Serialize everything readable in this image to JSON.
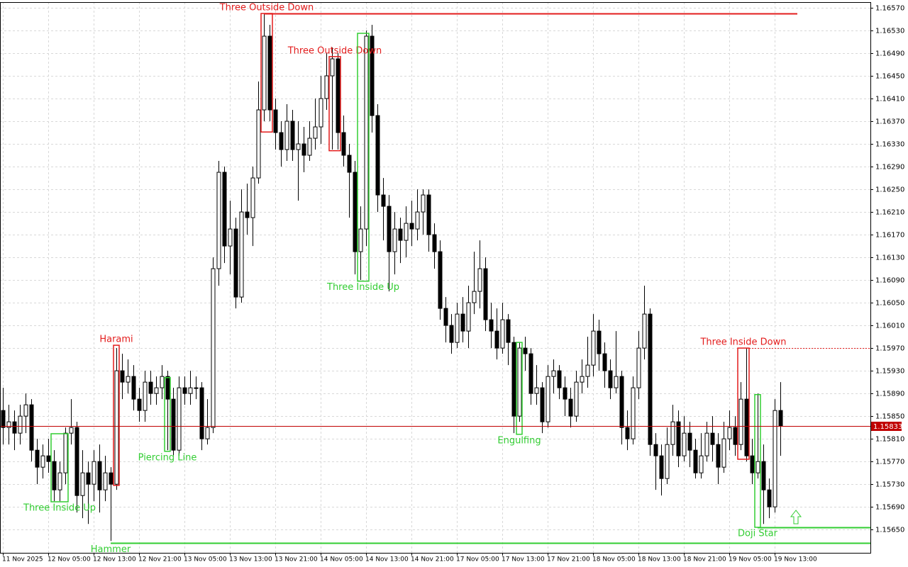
{
  "chart_data": {
    "type": "candlestick",
    "ylim": [
      1.15609,
      1.1658
    ],
    "yticks": [
      {
        "value": 1.1657,
        "label": "1.16570"
      },
      {
        "value": 1.1653,
        "label": "1.16530"
      },
      {
        "value": 1.1649,
        "label": "1.16490"
      },
      {
        "value": 1.1645,
        "label": "1.16450"
      },
      {
        "value": 1.1641,
        "label": "1.16410"
      },
      {
        "value": 1.1637,
        "label": "1.16370"
      },
      {
        "value": 1.1633,
        "label": "1.16330"
      },
      {
        "value": 1.1629,
        "label": "1.16290"
      },
      {
        "value": 1.1625,
        "label": "1.16250"
      },
      {
        "value": 1.1621,
        "label": "1.16210"
      },
      {
        "value": 1.1617,
        "label": "1.16170"
      },
      {
        "value": 1.1613,
        "label": "1.16130"
      },
      {
        "value": 1.1609,
        "label": "1.16090"
      },
      {
        "value": 1.1605,
        "label": "1.16050"
      },
      {
        "value": 1.1601,
        "label": "1.16010"
      },
      {
        "value": 1.1597,
        "label": "1.15970"
      },
      {
        "value": 1.1593,
        "label": "1.15930"
      },
      {
        "value": 1.1589,
        "label": "1.15890"
      },
      {
        "value": 1.1585,
        "label": "1.15850"
      },
      {
        "value": 1.1581,
        "label": "1.15810"
      },
      {
        "value": 1.1577,
        "label": "1.15770"
      },
      {
        "value": 1.1573,
        "label": "1.15730"
      },
      {
        "value": 1.1569,
        "label": "1.15690"
      },
      {
        "value": 1.1565,
        "label": "1.15650"
      }
    ],
    "grid": true,
    "categories": [
      "11 Nov 2025",
      null,
      null,
      null,
      null,
      null,
      null,
      null,
      "12 Nov 05:00",
      null,
      null,
      null,
      null,
      null,
      null,
      null,
      "12 Nov 13:00",
      null,
      null,
      null,
      null,
      null,
      null,
      null,
      "12 Nov 21:00",
      null,
      null,
      null,
      null,
      null,
      null,
      null,
      "13 Nov 05:00",
      null,
      null,
      null,
      null,
      null,
      null,
      null,
      "13 Nov 13:00",
      null,
      null,
      null,
      null,
      null,
      null,
      null,
      "13 Nov 21:00",
      null,
      null,
      null,
      null,
      null,
      null,
      null,
      "14 Nov 05:00",
      null,
      null,
      null,
      null,
      null,
      null,
      null,
      "14 Nov 13:00",
      null,
      null,
      null,
      null,
      null,
      null,
      null,
      "14 Nov 21:00",
      null,
      null,
      null,
      null,
      null,
      null,
      null,
      "17 Nov 05:00",
      null,
      null,
      null,
      null,
      null,
      null,
      null,
      "17 Nov 13:00",
      null,
      null,
      null,
      null,
      null,
      null,
      null,
      "17 Nov 21:00",
      null,
      null,
      null,
      null,
      null,
      null,
      null,
      "18 Nov 05:00",
      null,
      null,
      null,
      null,
      null,
      null,
      null,
      "18 Nov 13:00",
      null,
      null,
      null,
      null,
      null,
      null,
      null,
      "18 Nov 21:00",
      null,
      null,
      null,
      null,
      null,
      null,
      null,
      "19 Nov 05:00",
      null,
      null,
      null,
      null,
      null,
      null,
      null,
      "19 Nov 13:00",
      null
    ],
    "open": [
      1.1586,
      1.1583,
      1.1584,
      1.1582,
      1.1585,
      1.1587,
      1.1579,
      1.1576,
      1.1578,
      1.1577,
      1.1572,
      1.1575,
      1.1582,
      1.1583,
      1.1571,
      1.1575,
      1.1573,
      1.1577,
      1.1572,
      1.1575,
      1.1573,
      1.1593,
      1.1591,
      1.1592,
      1.1588,
      1.1586,
      1.1591,
      1.1589,
      1.159,
      1.1592,
      1.1588,
      1.1579,
      1.159,
      1.1589,
      1.159,
      1.159,
      1.1581,
      1.1583,
      1.1611,
      1.1628,
      1.1615,
      1.1618,
      1.1606,
      1.1621,
      1.162,
      1.1627,
      1.1639,
      1.1652,
      1.1639,
      1.1635,
      1.1632,
      1.1637,
      1.1632,
      1.1633,
      1.1631,
      1.1634,
      1.1636,
      1.1641,
      1.1645,
      1.1648,
      1.1635,
      1.1631,
      1.1628,
      1.1614,
      1.1618,
      1.1652,
      1.1638,
      1.1624,
      1.1622,
      1.1614,
      1.1618,
      1.1616,
      1.1619,
      1.1618,
      1.1621,
      1.1624,
      1.1617,
      1.1614,
      1.1604,
      1.1601,
      1.1598,
      1.1603,
      1.16,
      1.1605,
      1.1607,
      1.1611,
      1.1602,
      1.16,
      1.1597,
      1.1602,
      1.1598,
      1.1585,
      1.1597,
      1.1596,
      1.1589,
      1.159,
      1.1584,
      1.1592,
      1.1593,
      1.159,
      1.1588,
      1.1585,
      1.1591,
      1.1592,
      1.1594,
      1.16,
      1.1596,
      1.1593,
      1.159,
      1.1592,
      1.1583,
      1.1581,
      1.159,
      1.1597,
      1.1603,
      1.158,
      1.1578,
      1.1574,
      1.158,
      1.1584,
      1.1578,
      1.1582,
      1.1579,
      1.1575,
      1.1578,
      1.1582,
      1.158,
      1.1576,
      1.1581,
      1.1583,
      1.158,
      1.1588,
      1.1578,
      1.1575,
      1.1577,
      1.1572,
      1.1569,
      1.1586
    ],
    "high": [
      1.159,
      1.1587,
      1.1586,
      1.1587,
      1.1589,
      1.1588,
      1.1581,
      1.158,
      1.1581,
      1.1579,
      1.1577,
      1.1583,
      1.1588,
      1.1584,
      1.1579,
      1.1577,
      1.1579,
      1.158,
      1.1578,
      1.1576,
      1.1597,
      1.1596,
      1.1595,
      1.1594,
      1.159,
      1.1593,
      1.1593,
      1.1592,
      1.1594,
      1.1593,
      1.159,
      1.1592,
      1.1592,
      1.1593,
      1.1592,
      1.1591,
      1.1588,
      1.1613,
      1.163,
      1.1629,
      1.1623,
      1.162,
      1.1625,
      1.1626,
      1.1629,
      1.1644,
      1.1656,
      1.1654,
      1.1641,
      1.1637,
      1.164,
      1.1639,
      1.1637,
      1.1636,
      1.1637,
      1.1641,
      1.1645,
      1.1649,
      1.165,
      1.1649,
      1.1638,
      1.1633,
      1.163,
      1.1622,
      1.1653,
      1.1654,
      1.164,
      1.1627,
      1.1624,
      1.1621,
      1.162,
      1.1622,
      1.1623,
      1.1625,
      1.1625,
      1.1625,
      1.1619,
      1.1616,
      1.1606,
      1.1603,
      1.1605,
      1.1606,
      1.1608,
      1.1614,
      1.1616,
      1.1613,
      1.1605,
      1.1604,
      1.1605,
      1.1603,
      1.1599,
      1.1598,
      1.1599,
      1.1597,
      1.1594,
      1.1591,
      1.1594,
      1.1595,
      1.1594,
      1.1592,
      1.159,
      1.1593,
      1.1595,
      1.1599,
      1.1603,
      1.1602,
      1.1598,
      1.1595,
      1.16,
      1.1593,
      1.1586,
      1.1592,
      1.16,
      1.1608,
      1.1604,
      1.1582,
      1.158,
      1.1583,
      1.1587,
      1.1586,
      1.1585,
      1.1584,
      1.1581,
      1.1582,
      1.1584,
      1.1585,
      1.1582,
      1.1584,
      1.1586,
      1.1585,
      1.1591,
      1.1597,
      1.1581,
      1.1589,
      1.158,
      1.1574,
      1.1588,
      1.1591
    ],
    "low": [
      1.158,
      1.158,
      1.1579,
      1.158,
      1.1582,
      1.1577,
      1.1573,
      1.1574,
      1.1575,
      1.157,
      1.157,
      1.1573,
      1.158,
      1.1568,
      1.1567,
      1.1566,
      1.157,
      1.1568,
      1.157,
      1.1563,
      1.1572,
      1.1588,
      1.1589,
      1.1586,
      1.1584,
      1.1584,
      1.1587,
      1.1587,
      1.1588,
      1.1579,
      1.1578,
      1.1578,
      1.1587,
      1.1587,
      1.1588,
      1.1579,
      1.158,
      1.1582,
      1.1608,
      1.1612,
      1.161,
      1.1604,
      1.1605,
      1.1617,
      1.1615,
      1.1626,
      1.1637,
      1.1637,
      1.1632,
      1.1629,
      1.163,
      1.163,
      1.1623,
      1.1628,
      1.163,
      1.1632,
      1.1633,
      1.1639,
      1.1632,
      1.1632,
      1.1629,
      1.162,
      1.161,
      1.1609,
      1.1615,
      1.1635,
      1.1621,
      1.1616,
      1.1607,
      1.161,
      1.1612,
      1.1613,
      1.1615,
      1.1616,
      1.1617,
      1.1614,
      1.1611,
      1.1602,
      1.1598,
      1.1596,
      1.1597,
      1.1598,
      1.1597,
      1.1603,
      1.1604,
      1.16,
      1.1597,
      1.1595,
      1.1596,
      1.1594,
      1.1582,
      1.1584,
      1.1593,
      1.1587,
      1.1587,
      1.1582,
      1.1583,
      1.1589,
      1.1588,
      1.1585,
      1.1583,
      1.1584,
      1.1589,
      1.159,
      1.1592,
      1.1593,
      1.159,
      1.1588,
      1.1589,
      1.158,
      1.1579,
      1.158,
      1.1588,
      1.1595,
      1.1578,
      1.1572,
      1.1571,
      1.1573,
      1.1578,
      1.1576,
      1.1577,
      1.1576,
      1.1574,
      1.1574,
      1.1577,
      1.1577,
      1.1573,
      1.1575,
      1.1579,
      1.1578,
      1.1579,
      1.1577,
      1.1573,
      1.1574,
      1.1566,
      1.1567,
      1.1568,
      1.1578
    ],
    "close": [
      1.1583,
      1.1584,
      1.1582,
      1.1585,
      1.1587,
      1.1579,
      1.1576,
      1.1578,
      1.1577,
      1.1572,
      1.1575,
      1.1582,
      1.1583,
      1.1571,
      1.1575,
      1.1573,
      1.1577,
      1.1572,
      1.1575,
      1.1573,
      1.1593,
      1.1591,
      1.1592,
      1.1588,
      1.1586,
      1.1591,
      1.1589,
      1.159,
      1.1592,
      1.1588,
      1.1579,
      1.159,
      1.1589,
      1.159,
      1.159,
      1.1581,
      1.1583,
      1.1611,
      1.1628,
      1.1615,
      1.1618,
      1.1606,
      1.1621,
      1.162,
      1.1627,
      1.1639,
      1.1652,
      1.1639,
      1.1635,
      1.1632,
      1.1637,
      1.1632,
      1.1633,
      1.1631,
      1.1634,
      1.1636,
      1.1641,
      1.1645,
      1.1648,
      1.1635,
      1.1631,
      1.1628,
      1.1614,
      1.1618,
      1.1652,
      1.1638,
      1.1624,
      1.1622,
      1.1614,
      1.1618,
      1.1616,
      1.1619,
      1.1618,
      1.1621,
      1.1624,
      1.1617,
      1.1614,
      1.1604,
      1.1601,
      1.1598,
      1.1603,
      1.16,
      1.1605,
      1.1607,
      1.1611,
      1.1602,
      1.16,
      1.1597,
      1.1602,
      1.1598,
      1.1585,
      1.1597,
      1.1596,
      1.1589,
      1.159,
      1.1584,
      1.1592,
      1.1593,
      1.159,
      1.1588,
      1.1585,
      1.1591,
      1.1592,
      1.1594,
      1.16,
      1.1596,
      1.1593,
      1.159,
      1.1592,
      1.1583,
      1.1581,
      1.159,
      1.1597,
      1.1603,
      1.158,
      1.1578,
      1.1574,
      1.158,
      1.1584,
      1.1578,
      1.1582,
      1.1579,
      1.1575,
      1.1578,
      1.1582,
      1.158,
      1.1576,
      1.1581,
      1.1583,
      1.158,
      1.1588,
      1.1578,
      1.1575,
      1.1577,
      1.1572,
      1.1569,
      1.1586,
      1.15833
    ],
    "annotations": [
      {
        "text": "Three Inside Up",
        "color": "#32cd32",
        "from": 9,
        "to": 11,
        "top": 1.15819,
        "bottom": 1.15699,
        "position": "below"
      },
      {
        "text": "Hammer",
        "color": "#32cd32",
        "from": 19,
        "to": 19,
        "top": 1.15626,
        "bottom": 1.15626,
        "position": "below"
      },
      {
        "text": "Harami",
        "color": "#e31c1c",
        "from": 20,
        "to": 20,
        "top": 1.15975,
        "bottom": 1.15728,
        "position": "above"
      },
      {
        "text": "Piercing Line",
        "color": "#32cd32",
        "from": 29,
        "to": 29,
        "top": 1.15918,
        "bottom": 1.15788,
        "position": "below"
      },
      {
        "text": "Three Outside Down",
        "color": "#e31c1c",
        "from": 46,
        "to": 47,
        "top": 1.1656,
        "bottom": 1.16351,
        "position": "above"
      },
      {
        "text": "Three Outside Down",
        "color": "#e31c1c",
        "from": 58,
        "to": 59,
        "top": 1.16484,
        "bottom": 1.16318,
        "position": "above"
      },
      {
        "text": "Three Inside Up",
        "color": "#32cd32",
        "from": 63,
        "to": 64,
        "top": 1.16525,
        "bottom": 1.16088,
        "position": "below"
      },
      {
        "text": "Engulfing",
        "color": "#32cd32",
        "from": 91,
        "to": 91,
        "top": 1.1598,
        "bottom": 1.15818,
        "position": "below"
      },
      {
        "text": "Three Inside Down",
        "color": "#e31c1c",
        "from": 130,
        "to": 131,
        "top": 1.1597,
        "bottom": 1.15774,
        "position": "above"
      },
      {
        "text": "Doji Star",
        "color": "#32cd32",
        "from": 133,
        "to": 133,
        "top": 1.15888,
        "bottom": 1.15654,
        "position": "below"
      }
    ],
    "levels": [
      {
        "price": 1.1656,
        "color": "#e31c1c",
        "from": 46,
        "to": 140
      },
      {
        "price": 1.1597,
        "color": "#e31c1c",
        "from": 131,
        "dashed": true
      },
      {
        "price": 1.15626,
        "color": "#32cd32",
        "from": 19
      },
      {
        "price": 1.15654,
        "color": "#32cd32",
        "from": 133
      }
    ],
    "price_line_color": "#c00000"
  }
}
